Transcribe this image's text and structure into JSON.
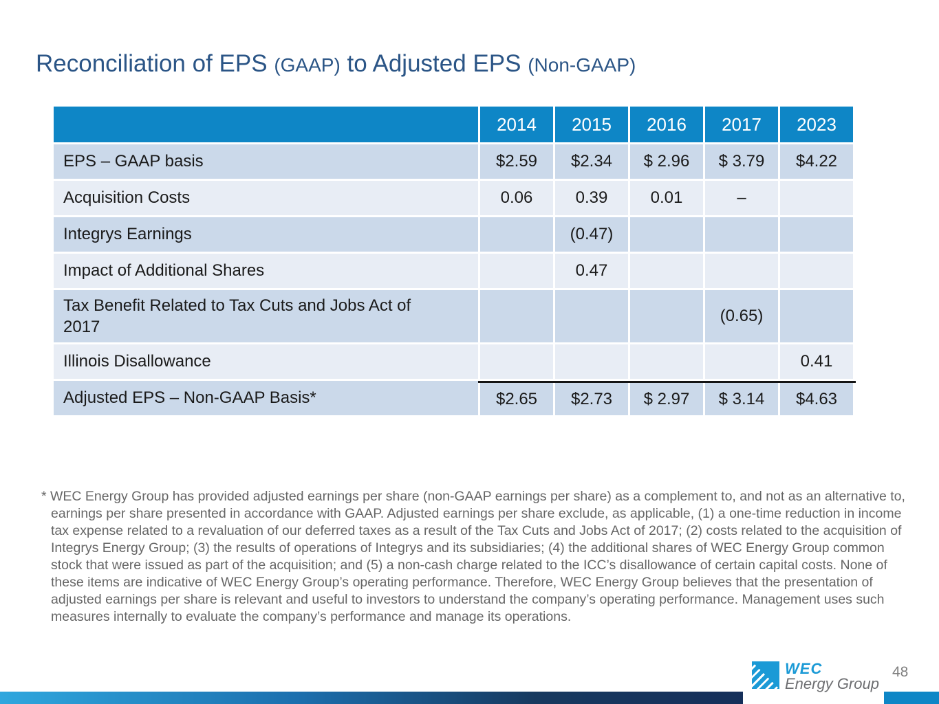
{
  "title": {
    "part1": "Reconciliation of EPS",
    "part2": "(GAAP)",
    "part3": "to Adjusted EPS",
    "part4": "(Non-GAAP)"
  },
  "table": {
    "header": [
      "2014",
      "2015",
      "2016",
      "2017",
      "2023"
    ],
    "rows": [
      {
        "label": "EPS – GAAP basis",
        "values": [
          "$2.59",
          "$2.34",
          "$ 2.96",
          "$ 3.79",
          "$4.22"
        ]
      },
      {
        "label": "Acquisition Costs",
        "values": [
          "0.06",
          "0.39",
          "0.01",
          "–",
          ""
        ]
      },
      {
        "label": "Integrys Earnings",
        "values": [
          "",
          "(0.47)",
          "",
          "",
          ""
        ]
      },
      {
        "label": "Impact of Additional Shares",
        "values": [
          "",
          "0.47",
          "",
          "",
          ""
        ]
      },
      {
        "label": "Tax Benefit Related to Tax Cuts and Jobs Act of 2017",
        "values": [
          "",
          "",
          "",
          "(0.65)",
          ""
        ]
      },
      {
        "label": "Illinois Disallowance",
        "values": [
          "",
          "",
          "",
          "",
          "0.41"
        ]
      },
      {
        "label": "Adjusted EPS – Non-GAAP Basis*",
        "values": [
          "$2.65",
          "$2.73",
          "$ 2.97",
          "$ 3.14",
          "$4.63"
        ]
      }
    ]
  },
  "footnote": {
    "text": "* WEC Energy Group has provided adjusted earnings per share (non-GAAP earnings per share) as a complement to, and not as an alternative to, earnings per share presented in accordance with GAAP. Adjusted earnings per share exclude, as applicable, (1) a one-time reduction in income tax expense related to a revaluation of our deferred taxes as a result of the Tax Cuts and Jobs Act of 2017; (2) costs related to the acquisition of Integrys Energy Group; (3) the results of operations of Integrys and its subsidiaries; (4) the additional shares of WEC Energy Group common stock that were issued as part of the acquisition; and (5) a non-cash charge related to the ICC’s disallowance of certain capital costs. None of these items are indicative of WEC Energy Group’s operating performance. Therefore, WEC Energy Group believes that the presentation of adjusted earnings per share is relevant and useful to investors to understand the company’s operating performance. Management uses such measures internally to evaluate the company’s performance and manage its operations."
  },
  "footer": {
    "logo_wec": "WEC",
    "logo_energy_group": "Energy Group",
    "page_number": "48"
  },
  "colors": {
    "header_blue": "#0e86c6",
    "row_dark": "#cbd9ea",
    "row_light": "#e8edf5",
    "title_blue": "#2b5586",
    "footnote_gray": "#666666",
    "logo_cyan": "#1b9ad6",
    "bar_gradient_start": "#2fa7de",
    "bar_gradient_end": "#152f5a"
  }
}
